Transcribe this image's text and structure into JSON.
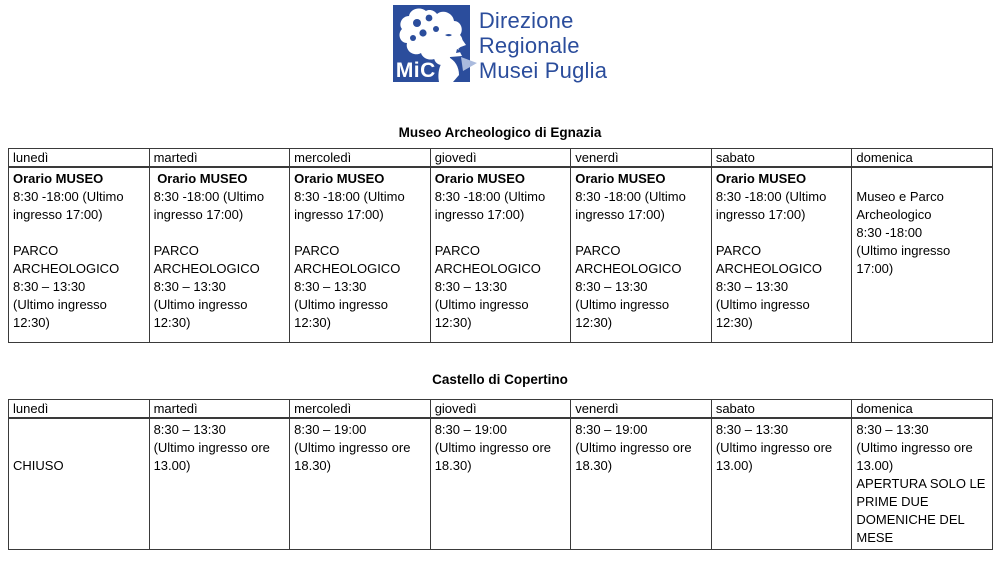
{
  "logo": {
    "mic_label": "MiC",
    "org_lines": [
      "Direzione",
      "Regionale",
      "Musei Puglia"
    ],
    "brand_blue": "#2b4d9c"
  },
  "tables": [
    {
      "title": "Museo Archeologico di Egnazia",
      "days": [
        "lunedì",
        "martedì",
        "mercoledì",
        "giovedì",
        "venerdì",
        "sabato",
        "domenica"
      ],
      "cells": [
        [
          {
            "t": "Orario MUSEO",
            "b": true
          },
          {
            "t": "8:30 -18:00 (Ultimo"
          },
          {
            "t": "ingresso 17:00)"
          },
          {
            "t": ""
          },
          {
            "t": "PARCO"
          },
          {
            "t": "ARCHEOLOGICO"
          },
          {
            "t": "8:30 – 13:30"
          },
          {
            "t": "(Ultimo ingresso"
          },
          {
            "t": "12:30)"
          }
        ],
        [
          {
            "t": " Orario MUSEO",
            "b": true
          },
          {
            "t": "8:30 -18:00 (Ultimo"
          },
          {
            "t": "ingresso 17:00)"
          },
          {
            "t": ""
          },
          {
            "t": "PARCO"
          },
          {
            "t": "ARCHEOLOGICO"
          },
          {
            "t": "8:30 – 13:30"
          },
          {
            "t": "(Ultimo ingresso"
          },
          {
            "t": "12:30)"
          }
        ],
        [
          {
            "t": "Orario MUSEO",
            "b": true
          },
          {
            "t": "8:30 -18:00 (Ultimo"
          },
          {
            "t": "ingresso 17:00)"
          },
          {
            "t": ""
          },
          {
            "t": "PARCO"
          },
          {
            "t": "ARCHEOLOGICO"
          },
          {
            "t": "8:30 – 13:30"
          },
          {
            "t": "(Ultimo ingresso"
          },
          {
            "t": "12:30)"
          }
        ],
        [
          {
            "t": "Orario MUSEO",
            "b": true
          },
          {
            "t": "8:30 -18:00 (Ultimo"
          },
          {
            "t": "ingresso 17:00)"
          },
          {
            "t": ""
          },
          {
            "t": "PARCO"
          },
          {
            "t": "ARCHEOLOGICO"
          },
          {
            "t": "8:30 – 13:30"
          },
          {
            "t": "(Ultimo ingresso"
          },
          {
            "t": "12:30)"
          }
        ],
        [
          {
            "t": "Orario MUSEO",
            "b": true
          },
          {
            "t": "8:30 -18:00 (Ultimo"
          },
          {
            "t": "ingresso 17:00)"
          },
          {
            "t": ""
          },
          {
            "t": "PARCO"
          },
          {
            "t": "ARCHEOLOGICO"
          },
          {
            "t": "8:30 – 13:30"
          },
          {
            "t": "(Ultimo ingresso"
          },
          {
            "t": "12:30)"
          }
        ],
        [
          {
            "t": "Orario MUSEO",
            "b": true
          },
          {
            "t": "8:30 -18:00 (Ultimo"
          },
          {
            "t": "ingresso 17:00)"
          },
          {
            "t": ""
          },
          {
            "t": "PARCO"
          },
          {
            "t": "ARCHEOLOGICO"
          },
          {
            "t": "8:30 – 13:30"
          },
          {
            "t": "(Ultimo ingresso"
          },
          {
            "t": "12:30)"
          }
        ],
        [
          {
            "t": ""
          },
          {
            "t": "Museo e Parco"
          },
          {
            "t": "Archeologico"
          },
          {
            "t": "8:30 -18:00"
          },
          {
            "t": "(Ultimo ingresso"
          },
          {
            "t": "17:00)"
          }
        ]
      ]
    },
    {
      "title": "Castello di Copertino",
      "days": [
        "lunedì",
        "martedì",
        "mercoledì",
        "giovedì",
        "venerdì",
        "sabato",
        "domenica"
      ],
      "cells": [
        [
          {
            "t": ""
          },
          {
            "t": ""
          },
          {
            "t": "CHIUSO"
          }
        ],
        [
          {
            "t": "8:30 – 13:30"
          },
          {
            "t": "(Ultimo ingresso ore"
          },
          {
            "t": "13.00)"
          }
        ],
        [
          {
            "t": "8:30 – 19:00"
          },
          {
            "t": "(Ultimo ingresso ore"
          },
          {
            "t": "18.30)"
          }
        ],
        [
          {
            "t": "8:30 – 19:00"
          },
          {
            "t": "(Ultimo ingresso ore"
          },
          {
            "t": "18.30)"
          }
        ],
        [
          {
            "t": "8:30 – 19:00"
          },
          {
            "t": "(Ultimo ingresso ore"
          },
          {
            "t": "18.30)"
          }
        ],
        [
          {
            "t": "8:30 – 13:30"
          },
          {
            "t": "(Ultimo ingresso ore"
          },
          {
            "t": "13.00)"
          }
        ],
        [
          {
            "t": "8:30 – 13:30"
          },
          {
            "t": "(Ultimo ingresso ore"
          },
          {
            "t": "13.00)"
          },
          {
            "t": "APERTURA SOLO LE"
          },
          {
            "t": "PRIME DUE"
          },
          {
            "t": "DOMENICHE DEL"
          },
          {
            "t": "MESE"
          }
        ]
      ]
    }
  ]
}
